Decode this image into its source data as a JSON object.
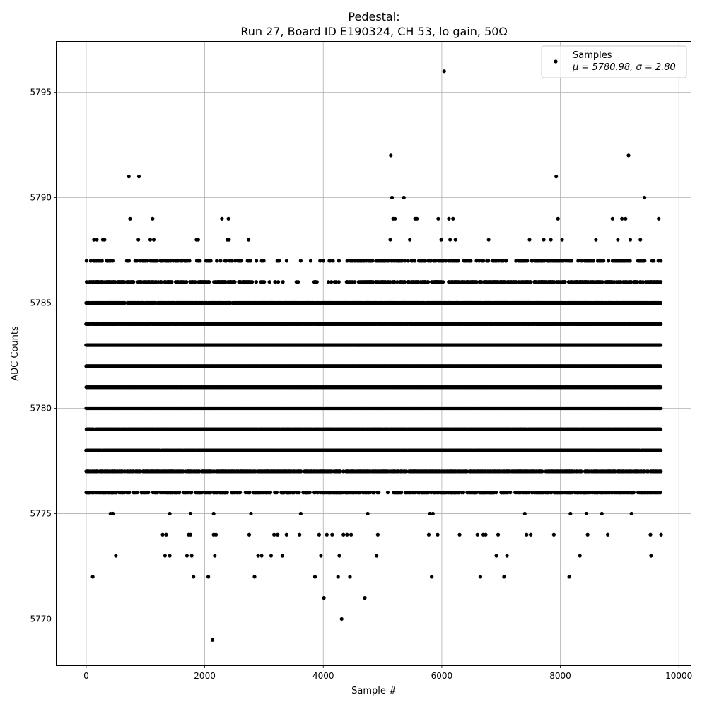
{
  "chart_data": {
    "type": "scatter",
    "title_line1": "Pedestal:",
    "title_line2": "Run 27, Board ID E190324, CH 53, lo gain, 50Ω",
    "xlabel": "Sample #",
    "ylabel": "ADC Counts",
    "xlim": [
      -500,
      10200
    ],
    "ylim": [
      5767.8,
      5797.4
    ],
    "xticks": [
      0,
      2000,
      4000,
      6000,
      8000,
      10000
    ],
    "yticks": [
      5770,
      5775,
      5780,
      5785,
      5790,
      5795
    ],
    "grid": true,
    "legend": {
      "position": "top-right",
      "label": "Samples",
      "stats_text": "μ = 5780.98, σ = 2.80"
    },
    "marker_color": "#000000",
    "n_samples": 9700,
    "dense_bands": {
      "x_range": [
        0,
        9700
      ],
      "levels": [
        5776,
        5777,
        5778,
        5779,
        5780,
        5781,
        5782,
        5783,
        5784,
        5785,
        5786,
        5787
      ]
    },
    "sparse_points": [
      [
        40,
        5776
      ],
      [
        110,
        5772
      ],
      [
        130,
        5788
      ],
      [
        180,
        5788
      ],
      [
        280,
        5788
      ],
      [
        310,
        5788
      ],
      [
        380,
        5776
      ],
      [
        410,
        5775
      ],
      [
        450,
        5775
      ],
      [
        500,
        5773
      ],
      [
        720,
        5791
      ],
      [
        740,
        5789
      ],
      [
        890,
        5791
      ],
      [
        880,
        5788
      ],
      [
        1080,
        5788
      ],
      [
        1120,
        5789
      ],
      [
        1140,
        5788
      ],
      [
        1290,
        5774
      ],
      [
        1330,
        5773
      ],
      [
        1350,
        5774
      ],
      [
        1410,
        5775
      ],
      [
        1410,
        5773
      ],
      [
        1700,
        5773
      ],
      [
        1730,
        5774
      ],
      [
        1760,
        5774
      ],
      [
        1760,
        5775
      ],
      [
        1780,
        5773
      ],
      [
        1810,
        5772
      ],
      [
        1860,
        5788
      ],
      [
        1890,
        5788
      ],
      [
        2060,
        5772
      ],
      [
        2130,
        5769
      ],
      [
        2150,
        5775
      ],
      [
        2170,
        5773
      ],
      [
        2150,
        5774
      ],
      [
        2190,
        5774
      ],
      [
        2290,
        5789
      ],
      [
        2380,
        5788
      ],
      [
        2400,
        5789
      ],
      [
        2410,
        5788
      ],
      [
        2740,
        5788
      ],
      [
        2750,
        5774
      ],
      [
        2780,
        5775
      ],
      [
        2840,
        5772
      ],
      [
        2900,
        5773
      ],
      [
        2960,
        5773
      ],
      [
        3120,
        5773
      ],
      [
        3170,
        5774
      ],
      [
        3230,
        5774
      ],
      [
        3310,
        5773
      ],
      [
        3380,
        5774
      ],
      [
        3600,
        5774
      ],
      [
        3620,
        5775
      ],
      [
        3860,
        5772
      ],
      [
        3930,
        5774
      ],
      [
        3960,
        5773
      ],
      [
        4010,
        5771
      ],
      [
        4060,
        5774
      ],
      [
        4150,
        5774
      ],
      [
        4250,
        5772
      ],
      [
        4270,
        5773
      ],
      [
        4310,
        5770
      ],
      [
        4340,
        5774
      ],
      [
        4400,
        5774
      ],
      [
        4450,
        5772
      ],
      [
        4470,
        5774
      ],
      [
        4700,
        5771
      ],
      [
        4750,
        5775
      ],
      [
        4900,
        5773
      ],
      [
        4920,
        5774
      ],
      [
        5130,
        5788
      ],
      [
        5140,
        5792
      ],
      [
        5160,
        5790
      ],
      [
        5180,
        5789
      ],
      [
        5210,
        5789
      ],
      [
        5360,
        5790
      ],
      [
        5460,
        5788
      ],
      [
        5550,
        5789
      ],
      [
        5580,
        5789
      ],
      [
        5780,
        5774
      ],
      [
        5800,
        5775
      ],
      [
        5830,
        5772
      ],
      [
        5850,
        5775
      ],
      [
        5930,
        5774
      ],
      [
        5940,
        5789
      ],
      [
        5990,
        5788
      ],
      [
        6040,
        5796
      ],
      [
        6120,
        5789
      ],
      [
        6140,
        5788
      ],
      [
        6190,
        5789
      ],
      [
        6230,
        5788
      ],
      [
        6300,
        5774
      ],
      [
        6600,
        5774
      ],
      [
        6650,
        5772
      ],
      [
        6700,
        5774
      ],
      [
        6740,
        5774
      ],
      [
        6790,
        5788
      ],
      [
        6920,
        5773
      ],
      [
        6950,
        5774
      ],
      [
        7050,
        5772
      ],
      [
        7100,
        5773
      ],
      [
        7400,
        5775
      ],
      [
        7430,
        5774
      ],
      [
        7480,
        5788
      ],
      [
        7500,
        5774
      ],
      [
        7720,
        5788
      ],
      [
        7840,
        5788
      ],
      [
        7890,
        5774
      ],
      [
        7930,
        5791
      ],
      [
        7960,
        5789
      ],
      [
        8030,
        5788
      ],
      [
        8150,
        5772
      ],
      [
        8170,
        5775
      ],
      [
        8330,
        5773
      ],
      [
        8440,
        5775
      ],
      [
        8460,
        5774
      ],
      [
        8600,
        5788
      ],
      [
        8700,
        5775
      ],
      [
        8800,
        5774
      ],
      [
        8880,
        5789
      ],
      [
        8970,
        5788
      ],
      [
        9040,
        5789
      ],
      [
        9100,
        5789
      ],
      [
        9150,
        5792
      ],
      [
        9180,
        5788
      ],
      [
        9200,
        5775
      ],
      [
        9350,
        5788
      ],
      [
        9420,
        5790
      ],
      [
        9440,
        5786
      ],
      [
        9520,
        5774
      ],
      [
        9530,
        5773
      ],
      [
        9660,
        5789
      ],
      [
        9700,
        5774
      ]
    ]
  }
}
